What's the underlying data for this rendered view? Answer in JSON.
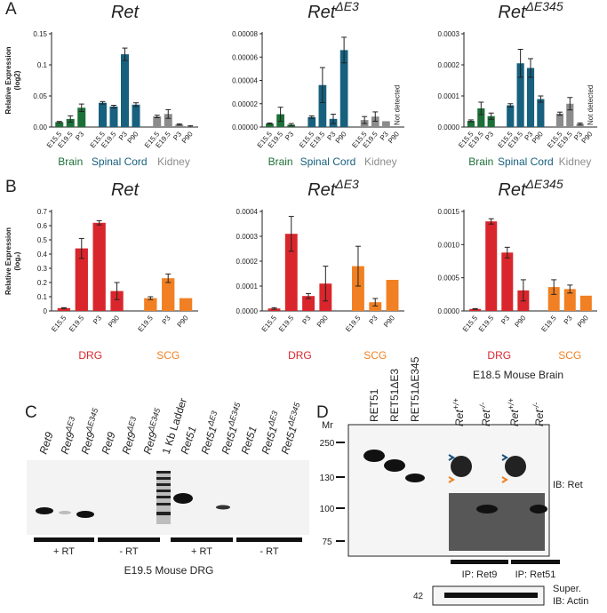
{
  "panels": [
    "A",
    "B",
    "C",
    "D"
  ],
  "chart_data": [
    {
      "type": "bar",
      "title": "Ret",
      "ylabel": [
        "Relative Expression",
        "(log2)"
      ],
      "ylim": [
        0,
        0.15
      ],
      "yticks": [
        {
          "value": 0,
          "label": "0.00"
        },
        0.05,
        0.1,
        0.15
      ],
      "groups": [
        {
          "name": "Brain",
          "color": "#1d6f38",
          "categories": [
            "E15.5",
            "E19.5",
            "P3"
          ],
          "values": [
            0.008,
            0.013,
            0.031
          ],
          "errors": [
            0.001,
            0.005,
            0.006
          ]
        },
        {
          "name": "Spinal Cord",
          "color": "#17607e",
          "categories": [
            "E15.5",
            "E19.5",
            "P3",
            "P90"
          ],
          "values": [
            0.039,
            0.033,
            0.117,
            0.036
          ],
          "errors": [
            0.002,
            0.002,
            0.01,
            0.003
          ]
        },
        {
          "name": "Kidney",
          "color": "#8c8c8c",
          "categories": [
            "E15.5",
            "E19.5",
            "P3",
            "P90"
          ],
          "values": [
            0.017,
            0.021,
            0.004,
            0.001
          ],
          "errors": [
            0.002,
            0.007,
            0.001,
            0.001
          ]
        }
      ]
    },
    {
      "type": "bar",
      "title": "Ret",
      "title_sup": "ΔE3",
      "ylim": [
        0,
        8e-05
      ],
      "yticks": [
        {
          "value": 0,
          "label": "0.00000"
        },
        {
          "value": 2e-05,
          "label": "0.00002"
        },
        {
          "value": 4e-05,
          "label": "0.00004"
        },
        {
          "value": 6e-05,
          "label": "0.00006"
        },
        {
          "value": 8e-05,
          "label": "0.00008"
        }
      ],
      "annotation": "Not detected",
      "groups": [
        {
          "name": "Brain",
          "color": "#1d6f38",
          "categories": [
            "E15.5",
            "E19.5",
            "P3"
          ],
          "values": [
            3e-06,
            1.1e-05,
            2e-06
          ],
          "errors": [
            5e-07,
            6e-06,
            1e-06
          ]
        },
        {
          "name": "Spinal Cord",
          "color": "#17607e",
          "categories": [
            "E15.5",
            "E19.5",
            "P3",
            "P90"
          ],
          "values": [
            8.5e-06,
            3.6e-05,
            7e-06,
            6.6e-05
          ],
          "errors": [
            1e-06,
            1.5e-05,
            4e-06,
            1.1e-05
          ]
        },
        {
          "name": "Kidney",
          "color": "#8c8c8c",
          "categories": [
            "E15.5",
            "E19.5",
            "P3",
            "P90"
          ],
          "values": [
            6e-06,
            9e-06,
            5e-06,
            null
          ],
          "errors": [
            3e-06,
            4e-06,
            0,
            null
          ]
        }
      ]
    },
    {
      "type": "bar",
      "title": "Ret",
      "title_sup": "ΔE345",
      "ylim": [
        0,
        0.0003
      ],
      "yticks": [
        {
          "value": 0,
          "label": "0.0000"
        },
        0.0001,
        0.0002,
        0.0003
      ],
      "annotation": "Not detected",
      "groups": [
        {
          "name": "Brain",
          "color": "#1d6f38",
          "categories": [
            "E15.5",
            "E19.5",
            "P3"
          ],
          "values": [
            2e-05,
            6e-05,
            3.5e-05
          ],
          "errors": [
            3e-06,
            2e-05,
            1e-05
          ]
        },
        {
          "name": "Spinal Cord",
          "color": "#17607e",
          "categories": [
            "E15.5",
            "E19.5",
            "P3",
            "P90"
          ],
          "values": [
            7e-05,
            0.000205,
            0.00019,
            9e-05
          ],
          "errors": [
            5e-06,
            4.5e-05,
            3e-05,
            1e-05
          ]
        },
        {
          "name": "Kidney",
          "color": "#8c8c8c",
          "categories": [
            "E15.5",
            "E19.5",
            "P3",
            "P90"
          ],
          "values": [
            4.3e-05,
            7.5e-05,
            1e-05,
            null
          ],
          "errors": [
            5e-06,
            2e-05,
            3e-06,
            null
          ]
        }
      ]
    },
    {
      "type": "bar",
      "title": "Ret",
      "ylabel": [
        "Relative Expression",
        "(log₂)"
      ],
      "ylim": [
        0,
        0.7
      ],
      "yticks": [
        0,
        0.1,
        0.2,
        0.3,
        0.4,
        0.5,
        0.6,
        0.7
      ],
      "groups": [
        {
          "name": "DRG",
          "color": "#d9262c",
          "categories": [
            "E15.5",
            "E19.5",
            "P3",
            "P90"
          ],
          "values": [
            0.02,
            0.44,
            0.62,
            0.14
          ],
          "errors": [
            0.003,
            0.07,
            0.015,
            0.06
          ]
        },
        {
          "name": "SCG",
          "color": "#f08023",
          "categories": [
            "E19.5",
            "P3",
            "P90"
          ],
          "values": [
            0.09,
            0.23,
            0.09
          ],
          "errors": [
            0.01,
            0.03,
            0
          ]
        }
      ]
    },
    {
      "type": "bar",
      "title": "Ret",
      "title_sup": "ΔE3",
      "ylim": [
        0,
        0.0004
      ],
      "yticks": [
        {
          "value": 0,
          "label": "0.0000"
        },
        0.0001,
        0.0002,
        0.0003,
        0.0004
      ],
      "groups": [
        {
          "name": "DRG",
          "color": "#d9262c",
          "categories": [
            "E15.5",
            "E19.5",
            "P3",
            "P90"
          ],
          "values": [
            1e-05,
            0.00031,
            6e-05,
            0.00011
          ],
          "errors": [
            3e-06,
            7e-05,
            1e-05,
            7e-05
          ]
        },
        {
          "name": "SCG",
          "color": "#f08023",
          "categories": [
            "E19.5",
            "P3",
            "P90"
          ],
          "values": [
            0.00018,
            3.5e-05,
            0.000125
          ],
          "errors": [
            8e-05,
            1.5e-05,
            0
          ]
        }
      ]
    },
    {
      "type": "bar",
      "title": "Ret",
      "title_sup": "ΔE345",
      "ylim": [
        0,
        0.0015
      ],
      "yticks": [
        {
          "value": 0,
          "label": "0.0000"
        },
        {
          "value": 0.0005,
          "label": "0.0005"
        },
        {
          "value": 0.001,
          "label": "0.0010"
        },
        {
          "value": 0.0015,
          "label": "0.0015"
        }
      ],
      "groups": [
        {
          "name": "DRG",
          "color": "#d9262c",
          "categories": [
            "E15.5",
            "E19.5",
            "P3",
            "P90"
          ],
          "values": [
            3e-05,
            0.00135,
            0.00088,
            0.00031
          ],
          "errors": [
            5e-06,
            4e-05,
            8e-05,
            0.00016
          ]
        },
        {
          "name": "SCG",
          "color": "#f08023",
          "categories": [
            "E19.5",
            "P3",
            "P90"
          ],
          "values": [
            0.00036,
            0.00033,
            0.00023
          ],
          "errors": [
            0.00011,
            6e-05,
            0
          ]
        }
      ]
    }
  ],
  "gels": {
    "C": {
      "lanes": [
        {
          "text": "Ret9"
        },
        {
          "text": "Ret9",
          "sup": "ΔE3"
        },
        {
          "text": "Ret9",
          "sup": "ΔE345"
        },
        {
          "text": "Ret9"
        },
        {
          "text": "Ret9",
          "sup": "ΔE3"
        },
        {
          "text": "Ret9",
          "sup": "ΔE345"
        },
        {
          "text": "1 Kb Ladder"
        },
        {
          "text": "Ret51"
        },
        {
          "text": "Ret51",
          "sup": "ΔE3"
        },
        {
          "text": "Ret51",
          "sup": "ΔE345"
        },
        {
          "text": "Ret51"
        },
        {
          "text": "Ret51",
          "sup": "ΔE3"
        },
        {
          "text": "Ret51",
          "sup": "ΔE345"
        }
      ],
      "groups": [
        "+ RT",
        "- RT",
        "+ RT",
        "- RT"
      ],
      "caption": "E19.5 Mouse DRG"
    },
    "D": {
      "title": "E18.5 Mouse Brain",
      "lanes": [
        {
          "text": "RET51"
        },
        {
          "text": "RET51ΔE3"
        },
        {
          "text": "RET51ΔE345"
        },
        {
          "text": "Ret",
          "sup": "+/+"
        },
        {
          "text": "Ret",
          "sup": "-/-"
        },
        {
          "text": "Ret",
          "sup": "+/+"
        },
        {
          "text": "Ret",
          "sup": "-/-"
        }
      ],
      "mr_label": "Mr",
      "markers": [
        "250",
        "130",
        "100",
        "75"
      ],
      "blot_label": "IB: Ret",
      "ip": [
        "IP: Ret9",
        "IP: Ret51"
      ],
      "actin_marker": "42",
      "actin_label": [
        "Super.",
        "IB: Actin"
      ]
    }
  }
}
